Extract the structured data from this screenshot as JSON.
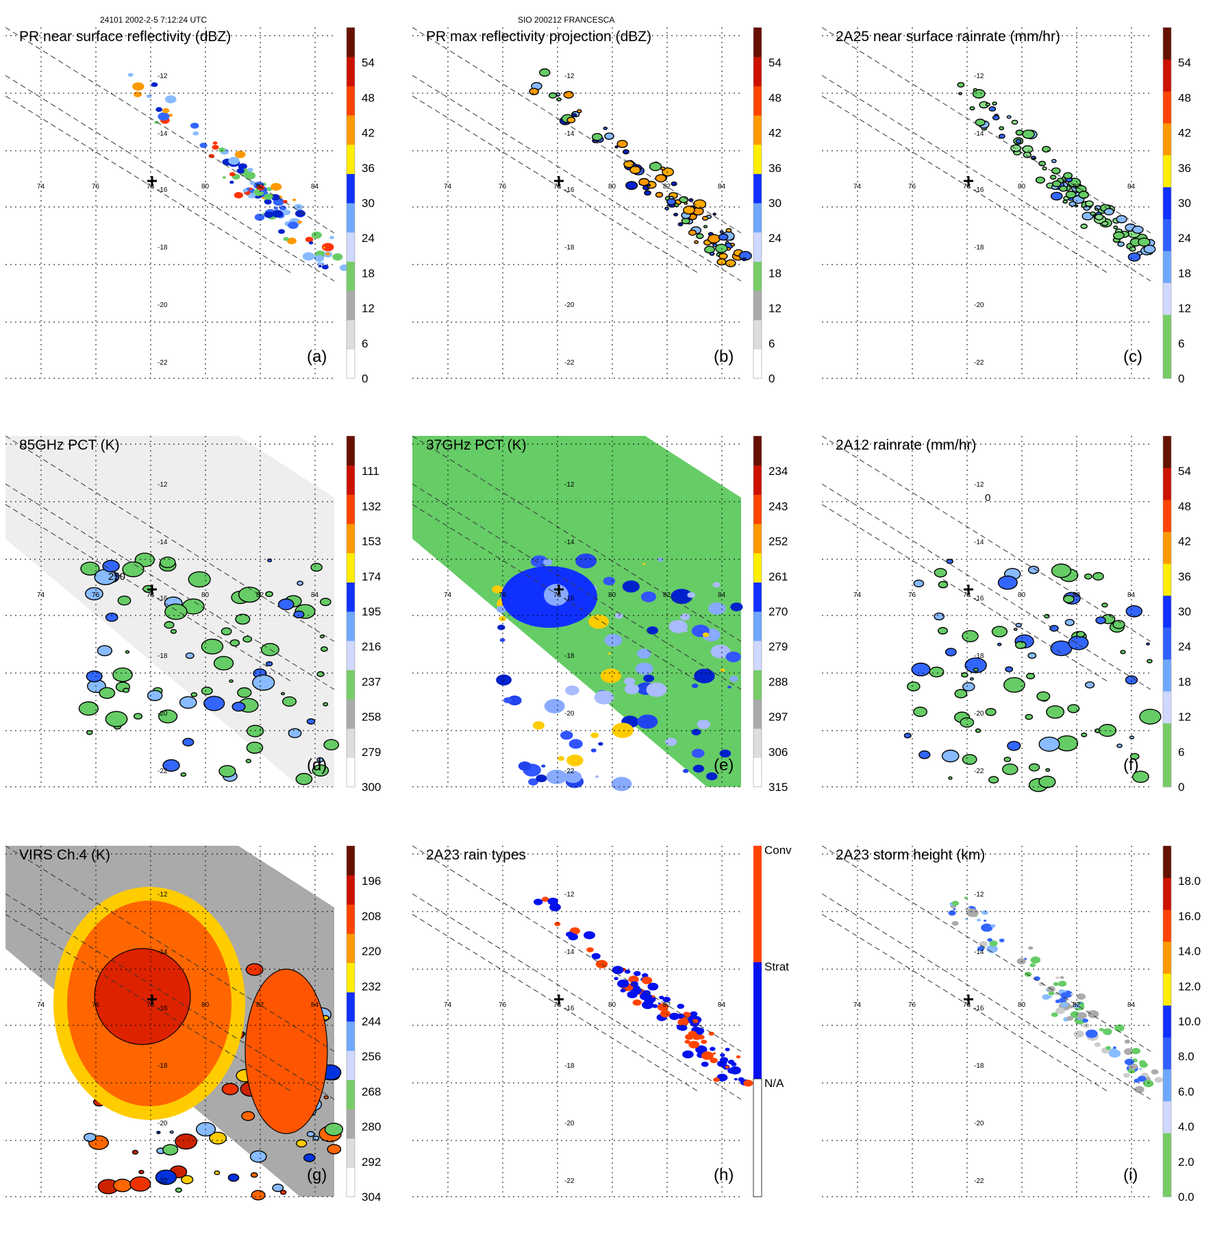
{
  "header": {
    "left": "24101 2002-2-5 7:12:24 UTC",
    "center": "SIO 200212 FRANCESCA"
  },
  "map": {
    "lon_labels": [
      "74",
      "76",
      "78",
      "80",
      "82",
      "84"
    ],
    "lat_labels": [
      "-12",
      "-14",
      "-16",
      "-18",
      "-20",
      "-22"
    ],
    "center_marker": "plus-icon"
  },
  "panels": [
    {
      "id": "a",
      "title": "PR near surface reflectivity (dBZ)",
      "letter": "(a)",
      "colorbar": [
        "0",
        "6",
        "12",
        "18",
        "24",
        "30",
        "36",
        "42",
        "48",
        "54"
      ],
      "fill": [
        "#3366ff",
        "#88bbff",
        "#66cc66",
        "#0022cc",
        "#ff9900",
        "#ff3300"
      ],
      "bg": "none",
      "swath": "pr",
      "contour": false
    },
    {
      "id": "b",
      "title": "PR max reflectivity projection (dBZ)",
      "letter": "(b)",
      "colorbar": [
        "0",
        "6",
        "12",
        "18",
        "24",
        "30",
        "36",
        "42",
        "48",
        "54"
      ],
      "fill": [
        "#3366ff",
        "#88bbff",
        "#0022cc",
        "#ffaa00",
        "#ff9900",
        "#66cc66"
      ],
      "bg": "none",
      "swath": "pr",
      "contour": true
    },
    {
      "id": "c",
      "title": "2A25 near surface rainrate (mm/hr)",
      "letter": "(c)",
      "colorbar": [
        "0",
        "6",
        "12",
        "18",
        "24",
        "30",
        "36",
        "42",
        "48",
        "54"
      ],
      "fill": [
        "#66cc66",
        "#88dd88",
        "#3366ff",
        "#66cc66",
        "#88bbff"
      ],
      "bg": "none",
      "swath": "pr",
      "contour": true
    },
    {
      "id": "d",
      "title": "85GHz PCT (K)",
      "letter": "(d)",
      "colorbar": [
        "300",
        "279",
        "258",
        "237",
        "216",
        "195",
        "174",
        "153",
        "132",
        "111"
      ],
      "fill": [
        "#66cc66",
        "#3366ff",
        "#66cc66",
        "#88bbff"
      ],
      "bg": "#eeeeee",
      "swath": "tmi",
      "contour": true,
      "annotation": "250"
    },
    {
      "id": "e",
      "title": "37GHz PCT (K)",
      "letter": "(e)",
      "colorbar": [
        "315",
        "306",
        "297",
        "288",
        "279",
        "270",
        "261",
        "252",
        "243",
        "234"
      ],
      "fill": [
        "#2244ee",
        "#88aaff",
        "#0022cc",
        "#ffcc00",
        "#3355ff",
        "#aabbff"
      ],
      "bg": "#66cc66",
      "swath": "tmi",
      "contour": false
    },
    {
      "id": "f",
      "title": "2A12 rainrate (mm/hr)",
      "letter": "(f)",
      "colorbar": [
        "0",
        "6",
        "12",
        "18",
        "24",
        "30",
        "36",
        "42",
        "48",
        "54"
      ],
      "fill": [
        "#66cc66",
        "#88bbff",
        "#66cc66",
        "#3366ff",
        "#66cc66"
      ],
      "bg": "none",
      "swath": "tmi",
      "contour": true,
      "annotation": "0"
    },
    {
      "id": "g",
      "title": "VIRS Ch.4 (K)",
      "letter": "(g)",
      "colorbar": [
        "304",
        "292",
        "280",
        "268",
        "256",
        "244",
        "232",
        "220",
        "208",
        "196"
      ],
      "fill": [
        "#ee3300",
        "#ff6600",
        "#ffcc00",
        "#0033dd",
        "#88bbff",
        "#66cc66",
        "#cc2200"
      ],
      "bg": "#aaaaaa",
      "swath": "tmi",
      "contour": true
    },
    {
      "id": "h",
      "title": "2A23 rain types",
      "letter": "(h)",
      "colorbar_labels": [
        "Conv",
        "Strat",
        "N/A"
      ],
      "fill": [
        "#ff4400",
        "#0011ee",
        "#0011ee",
        "#ff4400",
        "#0011ee"
      ],
      "bg": "none",
      "swath": "pr",
      "contour": false
    },
    {
      "id": "i",
      "title": "2A23 storm height (km)",
      "letter": "(i)",
      "colorbar": [
        "0.0",
        "2.0",
        "4.0",
        "6.0",
        "8.0",
        "10.0",
        "12.0",
        "14.0",
        "16.0",
        "18.0"
      ],
      "fill": [
        "#cccccc",
        "#88bbff",
        "#3366ff",
        "#66cc66",
        "#aaaaaa"
      ],
      "bg": "none",
      "swath": "pr",
      "contour": false
    }
  ],
  "palettes": {
    "dbz": [
      "#ffffff",
      "#dddddd",
      "#aaaaaa",
      "#77cc66",
      "#cfd8ff",
      "#6fa8ff",
      "#1030ff",
      "#ffee00",
      "#ff9900",
      "#ff4400",
      "#cc1100",
      "#661100"
    ],
    "rain": [
      "#77cc66",
      "#77cc66",
      "#cfd8ff",
      "#6fa8ff",
      "#3060ff",
      "#1030ff",
      "#ffee00",
      "#ff9900",
      "#ff4400",
      "#cc1100",
      "#661100"
    ],
    "pct": [
      "#ffffff",
      "#dddddd",
      "#aaaaaa",
      "#77cc66",
      "#cfd8ff",
      "#6fa8ff",
      "#1030ff",
      "#ffee00",
      "#ff9900",
      "#ff4400",
      "#cc1100",
      "#661100"
    ],
    "types": [
      "#ffffff",
      "#0011ee",
      "#ff4400"
    ]
  }
}
